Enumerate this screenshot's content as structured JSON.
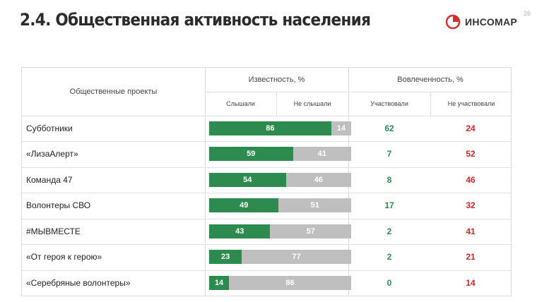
{
  "header": {
    "title": "2.4. Общественная активность населения",
    "logo_text": "ИНСОМАР",
    "page_number": "26"
  },
  "colors": {
    "heard": "#2e8b4f",
    "not_heard": "#bfbfbf",
    "participated": "#2e8b4f",
    "not_participated": "#c62828",
    "logo_accent": "#d62d2d"
  },
  "table": {
    "col_projects": "Общественные проекты",
    "col_awareness": "Известность, %",
    "col_engagement": "Вовлеченность, %",
    "sub_heard": "Слышали",
    "sub_not_heard": "Не слышали",
    "sub_participated": "Участвовали",
    "sub_not_participated": "Не участвовали",
    "rows": [
      {
        "name": "Субботники",
        "heard": 86,
        "not_heard": 14,
        "participated": 62,
        "not_participated": 24
      },
      {
        "name": "«ЛизаАлерт»",
        "heard": 59,
        "not_heard": 41,
        "participated": 7,
        "not_participated": 52
      },
      {
        "name": "Команда 47",
        "heard": 54,
        "not_heard": 46,
        "participated": 8,
        "not_participated": 46
      },
      {
        "name": "Волонтеры СВО",
        "heard": 49,
        "not_heard": 51,
        "participated": 17,
        "not_participated": 32
      },
      {
        "name": "#МЫВМЕСТЕ",
        "heard": 43,
        "not_heard": 57,
        "participated": 2,
        "not_participated": 41
      },
      {
        "name": "«От героя к герою»",
        "heard": 23,
        "not_heard": 77,
        "participated": 2,
        "not_participated": 21
      },
      {
        "name": "«Серебряные волонтеры»",
        "heard": 14,
        "not_heard": 86,
        "participated": 0,
        "not_participated": 14
      }
    ]
  }
}
